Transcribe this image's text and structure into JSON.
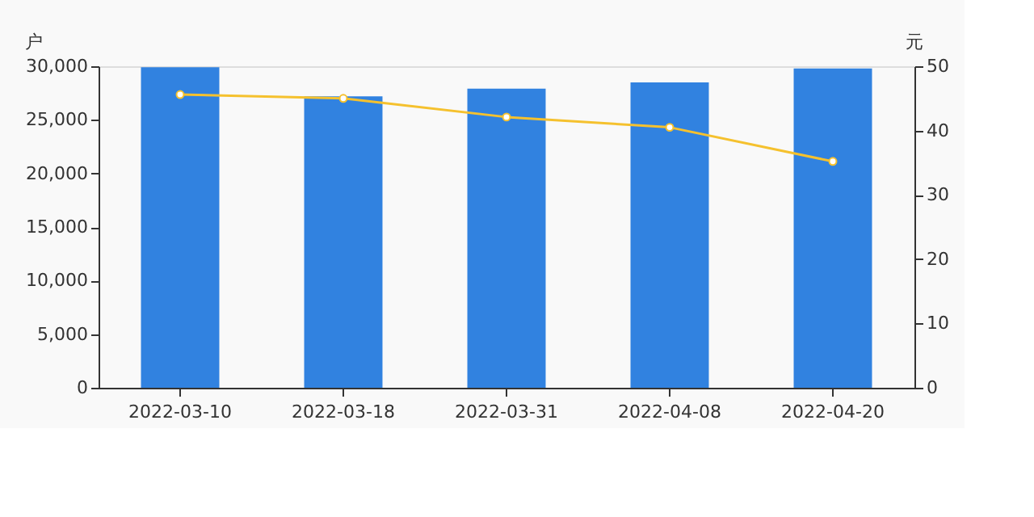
{
  "chart_data": {
    "type": "bar",
    "ylabel": "户",
    "y2label": "元",
    "categories": [
      "2022-03-10",
      "2022-03-18",
      "2022-03-31",
      "2022-04-08",
      "2022-04-20"
    ],
    "series": [
      {
        "color": "#3182e0",
        "values": [
          29900,
          27200,
          27900,
          28500,
          29800
        ]
      },
      {
        "type": "line",
        "axis": "y2",
        "color": "#f5c12e",
        "marker": "circle",
        "values": [
          45.6,
          45.0,
          42.1,
          40.5,
          35.2
        ]
      }
    ],
    "ylim": [
      0,
      30000
    ],
    "yticks": [
      0,
      {
        "value": 5000,
        "label": "5,000"
      },
      {
        "value": 10000,
        "label": "10,000"
      },
      {
        "value": 15000,
        "label": "15,000"
      },
      {
        "value": 20000,
        "label": "20,000"
      },
      {
        "value": 25000,
        "label": "25,000"
      },
      {
        "value": 30000,
        "label": "30,000"
      }
    ],
    "y2lim": [
      0,
      50
    ],
    "y2ticks": [
      0,
      10,
      20,
      30,
      40,
      50
    ],
    "grid": false
  }
}
